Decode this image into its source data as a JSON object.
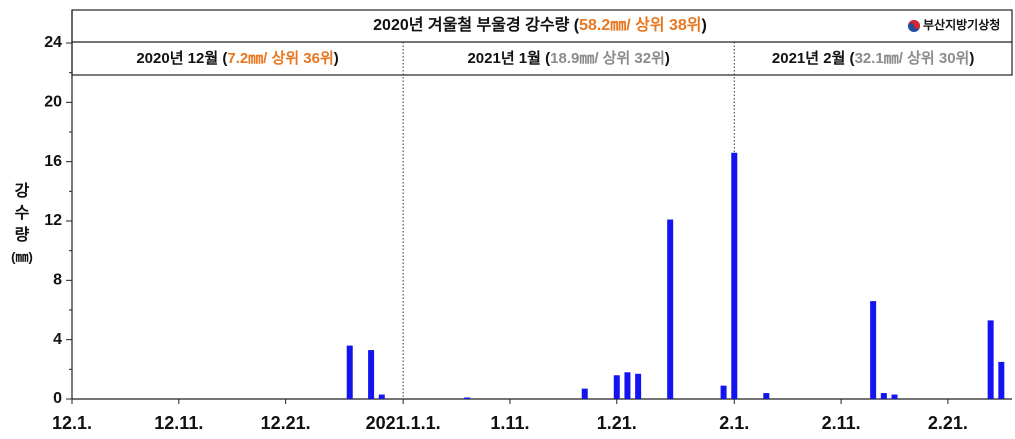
{
  "chart_data": {
    "type": "bar",
    "title": [
      "2020년 겨울철 부울경 강수량 (",
      "58.2㎜/ 상위 38위",
      ")"
    ],
    "title_highlight_color": "#e87722",
    "agency": "부산지방기상청",
    "months": [
      {
        "label": "2020년 12월 (",
        "stat": "7.2㎜/ 상위 36위",
        "close": ")",
        "stat_color": "#e87722",
        "start": 0
      },
      {
        "label": "2021년 1월 (",
        "stat": "18.9㎜/ 상위 32위",
        "close": ")",
        "stat_color": "#8c8c8c",
        "start": 31
      },
      {
        "label": "2021년 2월 (",
        "stat": "32.1㎜/ 상위 30위",
        "close": ")",
        "stat_color": "#8c8c8c",
        "start": 62
      }
    ],
    "y_label": [
      "강",
      "수",
      "량",
      "(㎜)"
    ],
    "categories": [
      "12.1.",
      null,
      null,
      null,
      null,
      null,
      null,
      null,
      null,
      null,
      "12.11.",
      null,
      null,
      null,
      null,
      null,
      null,
      null,
      null,
      null,
      "12.21.",
      null,
      null,
      null,
      null,
      null,
      null,
      null,
      null,
      null,
      null,
      "2021.1.1.",
      null,
      null,
      null,
      null,
      null,
      null,
      null,
      null,
      null,
      "1.11.",
      null,
      null,
      null,
      null,
      null,
      null,
      null,
      null,
      null,
      "1.21.",
      null,
      null,
      null,
      null,
      null,
      null,
      null,
      null,
      null,
      null,
      "2.1.",
      null,
      null,
      null,
      null,
      null,
      null,
      null,
      null,
      null,
      "2.11.",
      null,
      null,
      null,
      null,
      null,
      null,
      null,
      null,
      null,
      "2.21.",
      null,
      null,
      null,
      null,
      null
    ],
    "values": [
      0,
      0,
      0,
      0,
      0,
      0,
      0,
      0,
      0,
      0,
      0,
      0,
      0,
      0,
      0,
      0,
      0,
      0,
      0,
      0,
      0,
      0,
      0,
      0,
      0,
      0,
      3.6,
      0,
      3.3,
      0.3,
      0,
      0,
      0,
      0,
      0,
      0,
      0,
      0.1,
      0,
      0,
      0,
      0,
      0,
      0,
      0,
      0,
      0,
      0,
      0.7,
      0,
      0,
      1.6,
      1.8,
      1.7,
      0,
      0,
      12.1,
      0,
      0,
      0,
      0,
      0.9,
      16.6,
      0,
      0,
      0.4,
      0,
      0,
      0,
      0,
      0,
      0,
      0,
      0,
      0,
      6.6,
      0.4,
      0.3,
      0,
      0,
      0,
      0,
      0,
      0,
      0,
      0,
      5.3,
      2.5
    ],
    "color": "#1414f0",
    "ylim": [
      0,
      24
    ],
    "yticks": [
      0,
      4,
      8,
      12,
      16,
      20,
      24
    ],
    "yminor": [
      2,
      6,
      10,
      14,
      18,
      22
    ]
  }
}
